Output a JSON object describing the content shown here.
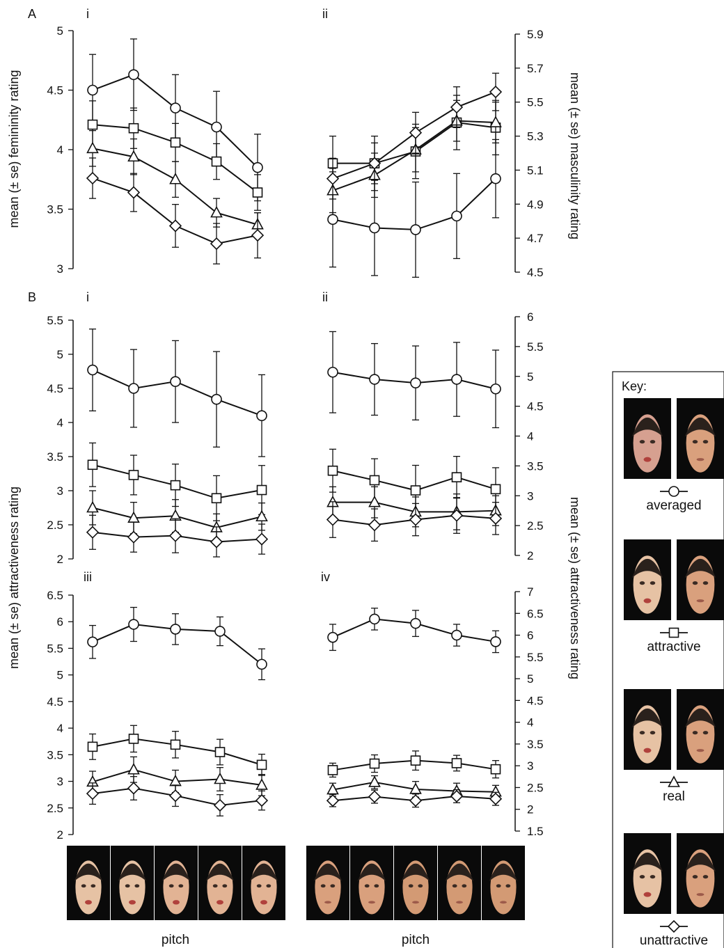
{
  "panel_letters": [
    "A",
    "B"
  ],
  "sub_labels": {
    "Ai": "i",
    "Aii": "ii",
    "Bi": "i",
    "Bii": "ii",
    "Biii": "iii",
    "Biv": "iv"
  },
  "y_labels": {
    "femininity": "mean (± se) femininity rating",
    "masculinity": "mean (± se) masculinity rating",
    "attr_left": "mean (± se) attractiveness rating",
    "attr_right": "mean (± se) attractiveness rating"
  },
  "pitch_label": "pitch",
  "key": {
    "title": "Key:",
    "items": [
      {
        "marker": "circle",
        "label": "averaged"
      },
      {
        "marker": "square",
        "label": "attractive"
      },
      {
        "marker": "triangle",
        "label": "real"
      },
      {
        "marker": "diamond",
        "label": "unattractive"
      }
    ]
  },
  "chart_data": [
    {
      "id": "Ai",
      "type": "line",
      "ylabel": "mean (± se) femininity rating",
      "xlabel": "pitch",
      "ylim": [
        3,
        5
      ],
      "yticks": [
        3,
        3.5,
        4,
        4.5,
        5
      ],
      "ytick_labels": [
        "3",
        "3.5",
        "4",
        "4.5",
        "5"
      ],
      "x": [
        1,
        2,
        3,
        4,
        5
      ],
      "series": [
        {
          "marker": "circle",
          "values": [
            4.5,
            4.63,
            4.35,
            4.19,
            3.85
          ],
          "se": [
            0.3,
            0.3,
            0.28,
            0.3,
            0.28
          ]
        },
        {
          "marker": "square",
          "values": [
            4.21,
            4.18,
            4.06,
            3.9,
            3.64
          ],
          "se": [
            0.2,
            0.17,
            0.16,
            0.15,
            0.15
          ]
        },
        {
          "marker": "triangle",
          "values": [
            4.01,
            3.94,
            3.75,
            3.47,
            3.37
          ],
          "se": [
            0.15,
            0.15,
            0.15,
            0.12,
            0.1
          ]
        },
        {
          "marker": "diamond",
          "values": [
            3.76,
            3.64,
            3.36,
            3.21,
            3.28
          ],
          "se": [
            0.17,
            0.16,
            0.18,
            0.17,
            0.19
          ]
        }
      ]
    },
    {
      "id": "Aii",
      "type": "line",
      "ylabel": "mean (± se) masculinity rating",
      "xlabel": "pitch",
      "ylim": [
        4.5,
        5.9
      ],
      "yticks": [
        4.5,
        4.7,
        4.9,
        5.1,
        5.3,
        5.5,
        5.7,
        5.9
      ],
      "ytick_labels": [
        "4.5",
        "4.7",
        "4.9",
        "5.1",
        "5.3",
        "5.5",
        "5.7",
        "5.9"
      ],
      "x": [
        1,
        2,
        3,
        4,
        5
      ],
      "series": [
        {
          "marker": "circle",
          "values": [
            4.81,
            4.76,
            4.75,
            4.83,
            5.05
          ],
          "se": [
            0.28,
            0.28,
            0.28,
            0.25,
            0.23
          ]
        },
        {
          "marker": "square",
          "values": [
            5.14,
            5.14,
            5.21,
            5.38,
            5.35
          ],
          "se": [
            0.16,
            0.16,
            0.16,
            0.16,
            0.16
          ]
        },
        {
          "marker": "triangle",
          "values": [
            4.98,
            5.07,
            5.22,
            5.39,
            5.38
          ],
          "se": [
            0.13,
            0.13,
            0.13,
            0.12,
            0.12
          ]
        },
        {
          "marker": "diamond",
          "values": [
            5.05,
            5.14,
            5.32,
            5.47,
            5.56
          ],
          "se": [
            0.12,
            0.12,
            0.12,
            0.12,
            0.11
          ]
        }
      ]
    },
    {
      "id": "Bi",
      "type": "line",
      "ylabel": "mean (± se) attractiveness rating",
      "xlabel": "pitch",
      "ylim": [
        2,
        5.5
      ],
      "yticks": [
        2,
        2.5,
        3,
        3.5,
        4,
        4.5,
        5,
        5.5
      ],
      "ytick_labels": [
        "2",
        "2.5",
        "3",
        "3.5",
        "4",
        "4.5",
        "5",
        "5.5"
      ],
      "x": [
        1,
        2,
        3,
        4,
        5
      ],
      "series": [
        {
          "marker": "circle",
          "values": [
            4.77,
            4.5,
            4.6,
            4.34,
            4.1
          ],
          "se": [
            0.6,
            0.57,
            0.6,
            0.7,
            0.6
          ]
        },
        {
          "marker": "square",
          "values": [
            3.38,
            3.23,
            3.08,
            2.89,
            3.01
          ],
          "se": [
            0.32,
            0.29,
            0.31,
            0.33,
            0.36
          ]
        },
        {
          "marker": "triangle",
          "values": [
            2.75,
            2.6,
            2.63,
            2.46,
            2.62
          ],
          "se": [
            0.25,
            0.23,
            0.24,
            0.2,
            0.2
          ]
        },
        {
          "marker": "diamond",
          "values": [
            2.39,
            2.32,
            2.34,
            2.25,
            2.29
          ],
          "se": [
            0.25,
            0.22,
            0.25,
            0.22,
            0.22
          ]
        }
      ]
    },
    {
      "id": "Bii",
      "type": "line",
      "ylabel": "mean (± se) attractiveness rating",
      "xlabel": "pitch",
      "ylim": [
        2,
        6
      ],
      "yticks": [
        2,
        2.5,
        3,
        3.5,
        4,
        4.5,
        5,
        5.5,
        6
      ],
      "ytick_labels": [
        "2",
        "2.5",
        "3",
        "3.5",
        "4",
        "4.5",
        "5",
        "5.5",
        "6"
      ],
      "x": [
        1,
        2,
        3,
        4,
        5
      ],
      "series": [
        {
          "marker": "circle",
          "values": [
            5.07,
            4.95,
            4.89,
            4.95,
            4.79
          ],
          "se": [
            0.68,
            0.6,
            0.62,
            0.62,
            0.65
          ]
        },
        {
          "marker": "square",
          "values": [
            3.42,
            3.26,
            3.09,
            3.31,
            3.11
          ],
          "se": [
            0.36,
            0.36,
            0.42,
            0.35,
            0.36
          ]
        },
        {
          "marker": "triangle",
          "values": [
            2.89,
            2.89,
            2.73,
            2.73,
            2.75
          ],
          "se": [
            0.26,
            0.26,
            0.25,
            0.3,
            0.25
          ]
        },
        {
          "marker": "diamond",
          "values": [
            2.6,
            2.51,
            2.6,
            2.67,
            2.62
          ],
          "se": [
            0.3,
            0.27,
            0.27,
            0.3,
            0.27
          ]
        }
      ]
    },
    {
      "id": "Biii",
      "type": "line",
      "ylabel": "mean (± se) attractiveness rating",
      "xlabel": "pitch",
      "ylim": [
        2,
        6.5
      ],
      "yticks": [
        2,
        2.5,
        3,
        3.5,
        4,
        4.5,
        5,
        5.5,
        6,
        6.5
      ],
      "ytick_labels": [
        "2",
        "2.5",
        "3",
        "3.5",
        "4",
        "4.5",
        "5",
        "5.5",
        "6",
        "6.5"
      ],
      "x": [
        1,
        2,
        3,
        4,
        5
      ],
      "series": [
        {
          "marker": "circle",
          "values": [
            5.62,
            5.95,
            5.86,
            5.82,
            5.2
          ],
          "se": [
            0.31,
            0.32,
            0.29,
            0.27,
            0.29
          ]
        },
        {
          "marker": "square",
          "values": [
            3.65,
            3.8,
            3.69,
            3.55,
            3.31
          ],
          "se": [
            0.24,
            0.25,
            0.25,
            0.24,
            0.2
          ]
        },
        {
          "marker": "triangle",
          "values": [
            2.99,
            3.22,
            3.0,
            3.04,
            2.93
          ],
          "se": [
            0.2,
            0.24,
            0.21,
            0.22,
            0.2
          ]
        },
        {
          "marker": "diamond",
          "values": [
            2.77,
            2.87,
            2.73,
            2.55,
            2.64
          ],
          "se": [
            0.2,
            0.22,
            0.2,
            0.2,
            0.18
          ]
        }
      ]
    },
    {
      "id": "Biv",
      "type": "line",
      "ylabel": "mean (± se) attractiveness rating",
      "xlabel": "pitch",
      "ylim": [
        1.5,
        7
      ],
      "yticks": [
        1.5,
        2,
        2.5,
        3,
        3.5,
        4,
        4.5,
        5,
        5.5,
        6,
        6.5,
        7
      ],
      "ytick_labels": [
        "1.5",
        "2",
        "2.5",
        "3",
        "3.5",
        "4",
        "4.5",
        "5",
        "5.5",
        "6",
        "6.5",
        "7"
      ],
      "x": [
        1,
        2,
        3,
        4,
        5
      ],
      "series": [
        {
          "marker": "circle",
          "values": [
            5.95,
            6.37,
            6.27,
            6.0,
            5.85
          ],
          "se": [
            0.3,
            0.25,
            0.3,
            0.25,
            0.25
          ]
        },
        {
          "marker": "square",
          "values": [
            2.9,
            3.05,
            3.12,
            3.06,
            2.92
          ],
          "se": [
            0.16,
            0.2,
            0.22,
            0.18,
            0.2
          ]
        },
        {
          "marker": "triangle",
          "values": [
            2.45,
            2.62,
            2.46,
            2.42,
            2.4
          ],
          "se": [
            0.15,
            0.15,
            0.18,
            0.18,
            0.15
          ]
        },
        {
          "marker": "diamond",
          "values": [
            2.2,
            2.29,
            2.2,
            2.3,
            2.24
          ],
          "se": [
            0.14,
            0.15,
            0.15,
            0.15,
            0.15
          ]
        }
      ]
    }
  ],
  "colors": {
    "axis": "#111111",
    "marker_fill": "#ffffff",
    "face_bg": "#0a0a0a",
    "skin": "#d9a07d",
    "skin_light": "#e6c2a4",
    "hair": "#2a211c",
    "lips": "#b0413c"
  }
}
